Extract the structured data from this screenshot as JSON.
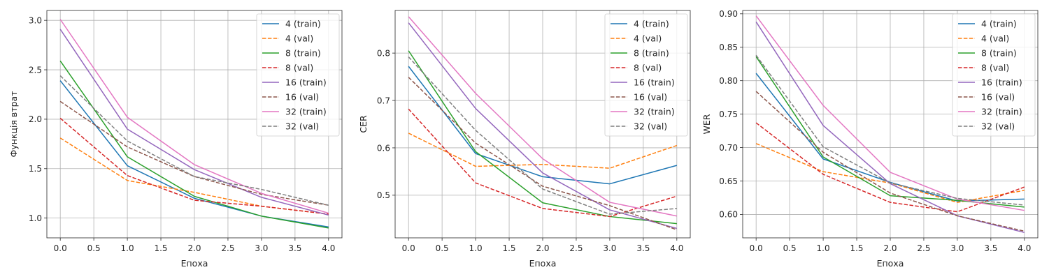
{
  "chart_data": [
    {
      "type": "line",
      "title": "",
      "xlabel": "Епоха",
      "ylabel": "Функція втрат",
      "xlim": [
        -0.2,
        4.2
      ],
      "ylim": [
        0.8,
        3.1
      ],
      "xticks": [
        "0.0",
        "0.5",
        "1.0",
        "1.5",
        "2.0",
        "2.5",
        "3.0",
        "3.5",
        "4.0"
      ],
      "yticks": [
        "1.0",
        "1.5",
        "2.0",
        "2.5",
        "3.0"
      ],
      "grid": true,
      "legend": "top-right",
      "x": [
        0,
        1,
        2,
        3,
        4
      ],
      "series": [
        {
          "name": "4 (train)",
          "color": "#1f77b4",
          "style": "solid",
          "values": [
            2.39,
            1.53,
            1.2,
            1.02,
            0.91
          ]
        },
        {
          "name": "4 (val)",
          "color": "#ff7f0e",
          "style": "dashed",
          "values": [
            1.81,
            1.38,
            1.26,
            1.12,
            1.04
          ]
        },
        {
          "name": "8 (train)",
          "color": "#2ca02c",
          "style": "solid",
          "values": [
            2.59,
            1.62,
            1.22,
            1.02,
            0.9
          ]
        },
        {
          "name": "8 (val)",
          "color": "#d62728",
          "style": "dashed",
          "values": [
            2.01,
            1.43,
            1.18,
            1.12,
            1.04
          ]
        },
        {
          "name": "16 (train)",
          "color": "#9467bd",
          "style": "solid",
          "values": [
            2.91,
            1.9,
            1.49,
            1.21,
            1.03
          ]
        },
        {
          "name": "16 (val)",
          "color": "#8c564b",
          "style": "dashed",
          "values": [
            2.18,
            1.72,
            1.42,
            1.24,
            1.13
          ]
        },
        {
          "name": "32 (train)",
          "color": "#e377c2",
          "style": "solid",
          "values": [
            3.01,
            2.02,
            1.54,
            1.25,
            1.05
          ]
        },
        {
          "name": "32 (val)",
          "color": "#7f7f7f",
          "style": "dashed",
          "values": [
            2.44,
            1.78,
            1.42,
            1.29,
            1.13
          ]
        }
      ]
    },
    {
      "type": "line",
      "title": "",
      "xlabel": "Епоха",
      "ylabel": "CER",
      "xlim": [
        -0.2,
        4.2
      ],
      "ylim": [
        0.41,
        0.89
      ],
      "xticks": [
        "0.0",
        "0.5",
        "1.0",
        "1.5",
        "2.0",
        "2.5",
        "3.0",
        "3.5",
        "4.0"
      ],
      "yticks": [
        "0.5",
        "0.6",
        "0.7",
        "0.8"
      ],
      "grid": true,
      "legend": "top-right",
      "x": [
        0,
        1,
        2,
        3,
        4
      ],
      "series": [
        {
          "name": "4 (train)",
          "color": "#1f77b4",
          "style": "solid",
          "values": [
            0.772,
            0.588,
            0.539,
            0.524,
            0.563
          ]
        },
        {
          "name": "4 (val)",
          "color": "#ff7f0e",
          "style": "dashed",
          "values": [
            0.631,
            0.561,
            0.565,
            0.557,
            0.605
          ]
        },
        {
          "name": "8 (train)",
          "color": "#2ca02c",
          "style": "solid",
          "values": [
            0.805,
            0.592,
            0.484,
            0.455,
            0.44
          ]
        },
        {
          "name": "8 (val)",
          "color": "#d62728",
          "style": "dashed",
          "values": [
            0.682,
            0.526,
            0.472,
            0.455,
            0.498
          ]
        },
        {
          "name": "16 (train)",
          "color": "#9467bd",
          "style": "solid",
          "values": [
            0.864,
            0.683,
            0.547,
            0.469,
            0.43
          ]
        },
        {
          "name": "16 (val)",
          "color": "#8c564b",
          "style": "dashed",
          "values": [
            0.749,
            0.61,
            0.519,
            0.478,
            0.427
          ]
        },
        {
          "name": "32 (train)",
          "color": "#e377c2",
          "style": "solid",
          "values": [
            0.877,
            0.715,
            0.577,
            0.485,
            0.456
          ]
        },
        {
          "name": "32 (val)",
          "color": "#7f7f7f",
          "style": "dashed",
          "values": [
            0.792,
            0.637,
            0.513,
            0.46,
            0.472
          ]
        }
      ]
    },
    {
      "type": "line",
      "title": "",
      "xlabel": "Епоха",
      "ylabel": "WER",
      "xlim": [
        -0.2,
        4.2
      ],
      "ylim": [
        0.565,
        0.905
      ],
      "xticks": [
        "0.0",
        "0.5",
        "1.0",
        "1.5",
        "2.0",
        "2.5",
        "3.0",
        "3.5",
        "4.0"
      ],
      "yticks": [
        "0.60",
        "0.65",
        "0.70",
        "0.75",
        "0.80",
        "0.85",
        "0.90"
      ],
      "grid": true,
      "legend": "top-right",
      "x": [
        0,
        1,
        2,
        3,
        4
      ],
      "series": [
        {
          "name": "4 (train)",
          "color": "#1f77b4",
          "style": "solid",
          "values": [
            0.811,
            0.683,
            0.648,
            0.62,
            0.623
          ]
        },
        {
          "name": "4 (val)",
          "color": "#ff7f0e",
          "style": "dashed",
          "values": [
            0.706,
            0.664,
            0.647,
            0.618,
            0.636
          ]
        },
        {
          "name": "8 (train)",
          "color": "#2ca02c",
          "style": "solid",
          "values": [
            0.836,
            0.686,
            0.628,
            0.621,
            0.611
          ]
        },
        {
          "name": "8 (val)",
          "color": "#d62728",
          "style": "dashed",
          "values": [
            0.737,
            0.66,
            0.618,
            0.604,
            0.641
          ]
        },
        {
          "name": "16 (train)",
          "color": "#9467bd",
          "style": "solid",
          "values": [
            0.888,
            0.733,
            0.646,
            0.598,
            0.573
          ]
        },
        {
          "name": "16 (val)",
          "color": "#8c564b",
          "style": "dashed",
          "values": [
            0.784,
            0.693,
            0.632,
            0.598,
            0.575
          ]
        },
        {
          "name": "32 (train)",
          "color": "#e377c2",
          "style": "solid",
          "values": [
            0.897,
            0.763,
            0.663,
            0.623,
            0.606
          ]
        },
        {
          "name": "32 (val)",
          "color": "#7f7f7f",
          "style": "dashed",
          "values": [
            0.838,
            0.701,
            0.647,
            0.624,
            0.614
          ]
        }
      ]
    }
  ]
}
